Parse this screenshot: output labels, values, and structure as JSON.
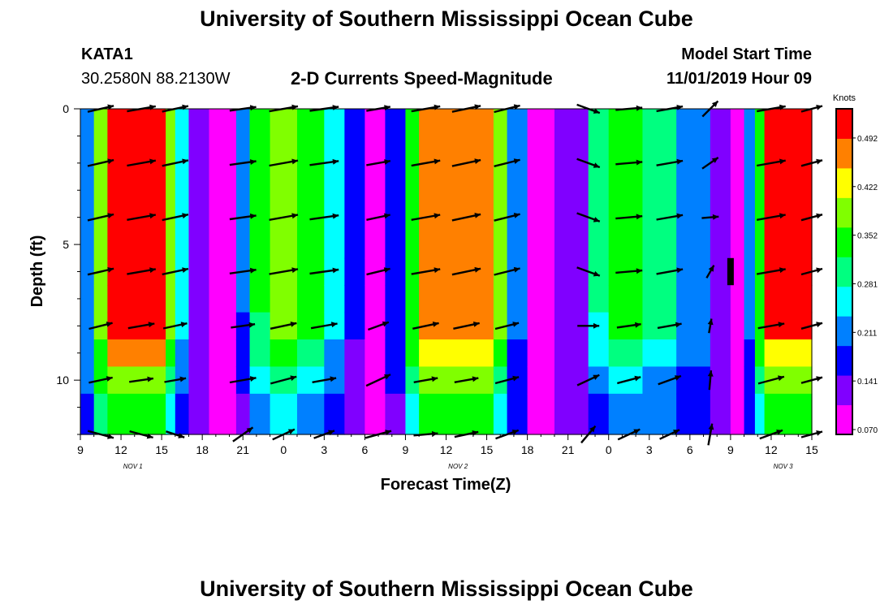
{
  "header": {
    "title": "University of Southern Mississippi Ocean Cube",
    "station": "KATA1",
    "coords": "30.2580N 88.2130W",
    "product": "2-D Currents Speed-Magnitude",
    "start_label": "Model Start Time",
    "start_time": "11/01/2019 Hour 09"
  },
  "footer": {
    "title": "University of Southern Mississippi Ocean Cube"
  },
  "chart_data": {
    "type": "heatmap",
    "title": "2-D Currents Speed-Magnitude",
    "xlabel": "Forecast Time(Z)",
    "ylabel": "Depth (ft)",
    "x_tick_labels": [
      "9",
      "12",
      "15",
      "18",
      "21",
      "0",
      "3",
      "6",
      "9",
      "12",
      "15",
      "18",
      "21",
      "0",
      "3",
      "6",
      "9",
      "12",
      "15"
    ],
    "date_labels": [
      "NOV  1",
      "NOV  2",
      "NOV  3"
    ],
    "y_ticks": [
      0,
      5,
      10
    ],
    "ylim": [
      0,
      12
    ],
    "x_range_hours": [
      0,
      54
    ],
    "colorbar": {
      "title": "Knots",
      "labels": [
        "0.492",
        "0.422",
        "0.352",
        "0.281",
        "0.211",
        "0.141",
        "0.070"
      ],
      "colors": [
        "#ff00ff",
        "#8000ff",
        "#0000ff",
        "#0080ff",
        "#00ffff",
        "#00ff80",
        "#00ff00",
        "#80ff00",
        "#ffff00",
        "#ff8000",
        "#ff0000"
      ]
    },
    "columns": [
      {
        "hours": [
          0,
          1.0
        ],
        "speed": [
          0.18,
          0.18,
          0.18,
          0.18,
          0.17,
          0.16,
          0.15
        ]
      },
      {
        "hours": [
          1.0,
          2.0
        ],
        "speed": [
          0.36,
          0.36,
          0.36,
          0.35,
          0.33,
          0.31,
          0.28
        ]
      },
      {
        "hours": [
          2.0,
          6.3
        ],
        "speed": [
          0.53,
          0.53,
          0.53,
          0.52,
          0.44,
          0.37,
          0.33
        ]
      },
      {
        "hours": [
          6.3,
          7.0
        ],
        "speed": [
          0.38,
          0.38,
          0.38,
          0.37,
          0.33,
          0.29,
          0.25
        ]
      },
      {
        "hours": [
          7.0,
          8.0
        ],
        "speed": [
          0.24,
          0.24,
          0.23,
          0.22,
          0.2,
          0.17,
          0.15
        ]
      },
      {
        "hours": [
          8.0,
          9.5
        ],
        "speed": [
          0.08,
          0.08,
          0.08,
          0.08,
          0.08,
          0.08,
          0.08
        ]
      },
      {
        "hours": [
          9.5,
          11.5
        ],
        "speed": [
          0.05,
          0.05,
          0.05,
          0.05,
          0.05,
          0.05,
          0.05
        ]
      },
      {
        "hours": [
          11.5,
          12.5
        ],
        "speed": [
          0.16,
          0.16,
          0.16,
          0.15,
          0.14,
          0.12,
          0.1
        ]
      },
      {
        "hours": [
          12.5,
          14.0
        ],
        "speed": [
          0.3,
          0.3,
          0.3,
          0.29,
          0.26,
          0.23,
          0.19
        ]
      },
      {
        "hours": [
          14.0,
          16.0
        ],
        "speed": [
          0.37,
          0.37,
          0.37,
          0.36,
          0.31,
          0.27,
          0.22
        ]
      },
      {
        "hours": [
          16.0,
          18.0
        ],
        "speed": [
          0.32,
          0.32,
          0.32,
          0.31,
          0.26,
          0.22,
          0.18
        ]
      },
      {
        "hours": [
          18.0,
          19.5
        ],
        "speed": [
          0.24,
          0.24,
          0.24,
          0.23,
          0.19,
          0.16,
          0.14
        ]
      },
      {
        "hours": [
          19.5,
          21.0
        ],
        "speed": [
          0.12,
          0.12,
          0.12,
          0.12,
          0.11,
          0.1,
          0.09
        ]
      },
      {
        "hours": [
          21.0,
          22.5
        ],
        "speed": [
          0.02,
          0.02,
          0.02,
          0.02,
          0.02,
          0.02,
          0.02
        ]
      },
      {
        "hours": [
          22.5,
          24.0
        ],
        "speed": [
          0.14,
          0.14,
          0.14,
          0.14,
          0.13,
          0.12,
          0.11
        ]
      },
      {
        "hours": [
          24.0,
          25.0
        ],
        "speed": [
          0.33,
          0.33,
          0.33,
          0.32,
          0.3,
          0.28,
          0.25
        ]
      },
      {
        "hours": [
          25.0,
          30.5
        ],
        "speed": [
          0.48,
          0.48,
          0.48,
          0.47,
          0.41,
          0.37,
          0.32
        ]
      },
      {
        "hours": [
          30.5,
          31.5
        ],
        "speed": [
          0.38,
          0.38,
          0.38,
          0.37,
          0.33,
          0.29,
          0.25
        ]
      },
      {
        "hours": [
          31.5,
          33.0
        ],
        "speed": [
          0.18,
          0.18,
          0.18,
          0.17,
          0.15,
          0.13,
          0.12
        ]
      },
      {
        "hours": [
          33.0,
          35.0
        ],
        "speed": [
          0.06,
          0.06,
          0.06,
          0.06,
          0.06,
          0.06,
          0.06
        ]
      },
      {
        "hours": [
          35.0,
          37.5
        ],
        "speed": [
          0.1,
          0.1,
          0.1,
          0.1,
          0.09,
          0.09,
          0.08
        ]
      },
      {
        "hours": [
          37.5,
          39.0
        ],
        "speed": [
          0.26,
          0.26,
          0.26,
          0.25,
          0.21,
          0.18,
          0.15
        ]
      },
      {
        "hours": [
          39.0,
          41.5
        ],
        "speed": [
          0.34,
          0.34,
          0.34,
          0.33,
          0.28,
          0.24,
          0.2
        ]
      },
      {
        "hours": [
          41.5,
          44.0
        ],
        "speed": [
          0.28,
          0.28,
          0.28,
          0.27,
          0.23,
          0.19,
          0.16
        ]
      },
      {
        "hours": [
          44.0,
          46.5
        ],
        "speed": [
          0.2,
          0.2,
          0.2,
          0.19,
          0.16,
          0.14,
          0.12
        ]
      },
      {
        "hours": [
          46.5,
          48.0
        ],
        "speed": [
          0.08,
          0.08,
          0.08,
          0.08,
          0.08,
          0.08,
          0.08
        ]
      },
      {
        "hours": [
          48.0,
          49.0
        ],
        "speed": [
          0.06,
          0.06,
          0.06,
          0.06,
          0.06,
          0.06,
          0.06
        ]
      },
      {
        "hours": [
          49.0,
          49.8
        ],
        "speed": [
          0.16,
          0.16,
          0.16,
          0.16,
          0.15,
          0.14,
          0.13
        ]
      },
      {
        "hours": [
          49.8,
          50.5
        ],
        "speed": [
          0.34,
          0.34,
          0.34,
          0.33,
          0.3,
          0.27,
          0.24
        ]
      },
      {
        "hours": [
          50.5,
          54.0
        ],
        "speed": [
          0.51,
          0.51,
          0.51,
          0.5,
          0.43,
          0.38,
          0.33
        ]
      }
    ],
    "depth_bands_ft": [
      [
        0,
        5.5
      ],
      [
        5.5,
        6.5
      ],
      [
        6.5,
        7.5
      ],
      [
        7.5,
        8.5
      ],
      [
        8.5,
        9.5
      ],
      [
        9.5,
        10.5
      ],
      [
        10.5,
        12
      ]
    ],
    "vectors": {
      "hours": [
        1.5,
        4.5,
        7.0,
        12.0,
        15.0,
        18.0,
        22.0,
        25.5,
        28.5,
        31.5,
        37.5,
        40.5,
        43.5,
        46.5,
        51.0,
        54.0
      ],
      "depths": [
        0,
        2,
        4,
        6,
        8,
        10,
        12
      ],
      "angle_deg": [
        [
          -13,
          -13,
          -13,
          -13,
          -14,
          -12,
          15
        ],
        [
          -10,
          -10,
          -10,
          -10,
          -10,
          -8,
          15
        ],
        [
          -12,
          -12,
          -12,
          -12,
          -12,
          -10,
          18
        ],
        [
          -8,
          -8,
          -8,
          -8,
          -8,
          -10,
          -35
        ],
        [
          -10,
          -10,
          -10,
          -10,
          -12,
          -15,
          -25
        ],
        [
          -8,
          -8,
          -8,
          -8,
          -10,
          -10,
          -20
        ],
        [
          -10,
          -10,
          -12,
          -14,
          -20,
          -25,
          -15
        ],
        [
          -10,
          -10,
          -10,
          -10,
          -12,
          -10,
          -5
        ],
        [
          -12,
          -12,
          -12,
          -12,
          -12,
          -10,
          -12
        ],
        [
          -14,
          -14,
          -14,
          -14,
          -14,
          -15,
          -20
        ],
        [
          20,
          20,
          20,
          20,
          0,
          -25,
          -50
        ],
        [
          -5,
          -5,
          -5,
          -5,
          -8,
          -15,
          -25
        ],
        [
          -10,
          -10,
          -10,
          -10,
          -10,
          -20,
          -25
        ],
        [
          -45,
          -35,
          -5,
          -60,
          -80,
          -85,
          -80
        ],
        [
          -10,
          -10,
          -10,
          -10,
          -10,
          -15,
          -20
        ],
        [
          -15,
          -15,
          -15,
          -15,
          -15,
          -15,
          -15
        ]
      ],
      "length_frac": [
        [
          0.55,
          0.55,
          0.55,
          0.55,
          0.5,
          0.5,
          0.55
        ],
        [
          0.6,
          0.6,
          0.6,
          0.6,
          0.55,
          0.5,
          0.5
        ],
        [
          0.55,
          0.55,
          0.55,
          0.55,
          0.5,
          0.45,
          0.4
        ],
        [
          0.55,
          0.55,
          0.55,
          0.55,
          0.5,
          0.55,
          0.5
        ],
        [
          0.6,
          0.6,
          0.6,
          0.6,
          0.55,
          0.55,
          0.5
        ],
        [
          0.6,
          0.6,
          0.6,
          0.6,
          0.55,
          0.5,
          0.45
        ],
        [
          0.5,
          0.5,
          0.5,
          0.5,
          0.45,
          0.55,
          0.55
        ],
        [
          0.6,
          0.6,
          0.6,
          0.6,
          0.55,
          0.5,
          0.5
        ],
        [
          0.6,
          0.6,
          0.6,
          0.6,
          0.55,
          0.5,
          0.5
        ],
        [
          0.55,
          0.55,
          0.55,
          0.55,
          0.5,
          0.5,
          0.5
        ],
        [
          0.5,
          0.5,
          0.5,
          0.5,
          0.45,
          0.5,
          0.45
        ],
        [
          0.55,
          0.55,
          0.55,
          0.55,
          0.5,
          0.5,
          0.5
        ],
        [
          0.55,
          0.55,
          0.55,
          0.55,
          0.5,
          0.5,
          0.45
        ],
        [
          0.45,
          0.4,
          0.35,
          0.3,
          0.3,
          0.4,
          0.45
        ],
        [
          0.6,
          0.6,
          0.6,
          0.6,
          0.55,
          0.55,
          0.5
        ],
        [
          0.45,
          0.45,
          0.45,
          0.45,
          0.45,
          0.45,
          0.45
        ]
      ]
    }
  }
}
